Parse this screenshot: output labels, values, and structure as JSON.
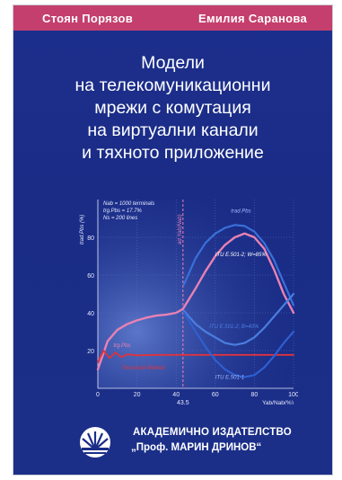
{
  "authors": [
    "Стоян Порязов",
    "Емилия Саранова"
  ],
  "title_lines": [
    "Модели",
    "на телекомуникационни",
    "мрежи с комутация",
    "на виртуални канали",
    "и тяхното приложение"
  ],
  "colors": {
    "cover_blue": "#1b2e88",
    "author_bar": "#c43f6d",
    "curve_pink": "#e882b4",
    "curve_blue": "#4a7ee0",
    "curve_red": "#e0333c"
  },
  "publisher": {
    "line1": "АКАДЕМИЧНО ИЗДАТЕЛСТВО",
    "line2": "„Проф. МАРИН ДРИНОВ“",
    "logo_icon": "sunburst-logo-icon"
  },
  "chart_data": {
    "type": "line",
    "xlabel": "Yab/Nab(%)",
    "ylabel": "trad.Pbs (%)",
    "xlim": [
      0,
      100
    ],
    "ylim": [
      0,
      100
    ],
    "x_ticks": [
      "0",
      "20",
      "40",
      "60",
      "80",
      "100"
    ],
    "y_ticks": [
      "20",
      "40",
      "60",
      "80"
    ],
    "x_marker_label": "43.5",
    "x_marker_value": 43.5,
    "vertical_line_label": "ad.Yab(Nab)",
    "annotations": [
      "Nab = 1000 terminals",
      "trg.Pbs = 17.7%",
      "Ns = 200 lines"
    ],
    "series_labels": [
      "trad.Pbs",
      "ITU E.501-2; W=85%",
      "trg.Pbs",
      "Threshold Method",
      "ITU E.501-2; B=40%",
      "ITU E.501-1"
    ],
    "series": [
      {
        "name": "trad.Pbs",
        "x": [
          0,
          5,
          10,
          15,
          20,
          25,
          30,
          35,
          40,
          43.5,
          50,
          55,
          60,
          65,
          70,
          75,
          80,
          85,
          90,
          95,
          100
        ],
        "values": [
          10,
          25,
          31,
          34,
          36,
          37.5,
          38.5,
          39,
          40,
          42,
          53,
          62,
          70,
          76,
          80,
          82,
          80,
          74,
          63,
          50,
          40
        ]
      },
      {
        "name": "ITU E.501-2; W=85%",
        "x": [
          44,
          50,
          55,
          60,
          65,
          70,
          75,
          80,
          85,
          90,
          95,
          100
        ],
        "values": [
          55,
          69,
          77,
          82,
          85,
          86.5,
          86,
          83,
          77,
          68,
          56,
          44
        ]
      },
      {
        "name": "trg.Pbs",
        "x": [
          0,
          3,
          6,
          9,
          12,
          15,
          20,
          30,
          40,
          50,
          60,
          70,
          80,
          90,
          100
        ],
        "values": [
          14,
          20,
          16,
          19,
          16.5,
          18,
          17.5,
          17.7,
          17.7,
          17.7,
          17.7,
          17.7,
          17.7,
          17.7,
          17.7
        ]
      },
      {
        "name": "ITU E.501-2; B=40%",
        "x": [
          44,
          50,
          55,
          60,
          65,
          70,
          75,
          80,
          85,
          90,
          95,
          100
        ],
        "values": [
          41,
          34,
          30,
          27,
          24,
          23,
          24,
          27,
          32,
          38,
          44,
          50
        ]
      },
      {
        "name": "ITU E.501-1",
        "x": [
          44,
          50,
          55,
          60,
          65,
          70,
          75,
          80,
          85,
          90,
          95,
          100
        ],
        "values": [
          40,
          30,
          22,
          15,
          10,
          7,
          6,
          7,
          11,
          17,
          24,
          30
        ]
      }
    ]
  }
}
